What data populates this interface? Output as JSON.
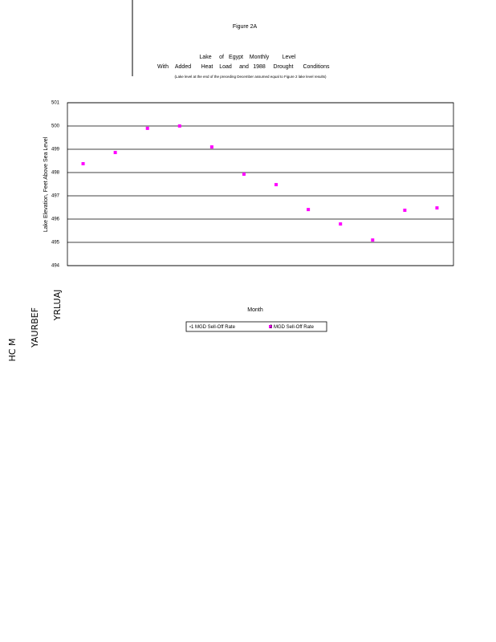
{
  "chart_data": {
    "type": "scatter",
    "figure_label": "Figure 2A",
    "title_top": [
      "Lake",
      "of",
      "Egypt",
      "Monthly",
      "Level"
    ],
    "title_bottom": [
      "With",
      "Added",
      "Heat",
      "Load",
      "and",
      "1988",
      "Drought",
      "Conditions"
    ],
    "subtitle": "(Lake level at the end of the preceding December assumed equal to Figure 2 lake level results)",
    "y_label": "Lake Elevation, Feet Above Sea Level",
    "x_label": "Month",
    "side_text": [
      "YRLUAJ",
      "YAURBEF",
      "HC M"
    ],
    "categories": [
      null,
      null,
      null,
      null,
      null,
      null,
      null,
      null,
      null,
      null,
      null,
      null
    ],
    "series": [
      {
        "name": "1 MGD Sell-Off Rate",
        "color": "#000000",
        "values": [
          null,
          null,
          null,
          null,
          null,
          null,
          null,
          null,
          null,
          null,
          null,
          null
        ]
      },
      {
        "name": "2 MGD Sell-Off Rate",
        "color": "#ff00ff",
        "values": [
          498.38,
          498.86,
          499.9,
          500.0,
          499.1,
          497.93,
          497.48,
          496.41,
          495.79,
          495.1,
          496.38,
          496.48
        ]
      }
    ],
    "ylim": [
      494,
      501
    ],
    "yticks": [
      494,
      495,
      496,
      497,
      498,
      499,
      500,
      501
    ],
    "grid": true
  }
}
